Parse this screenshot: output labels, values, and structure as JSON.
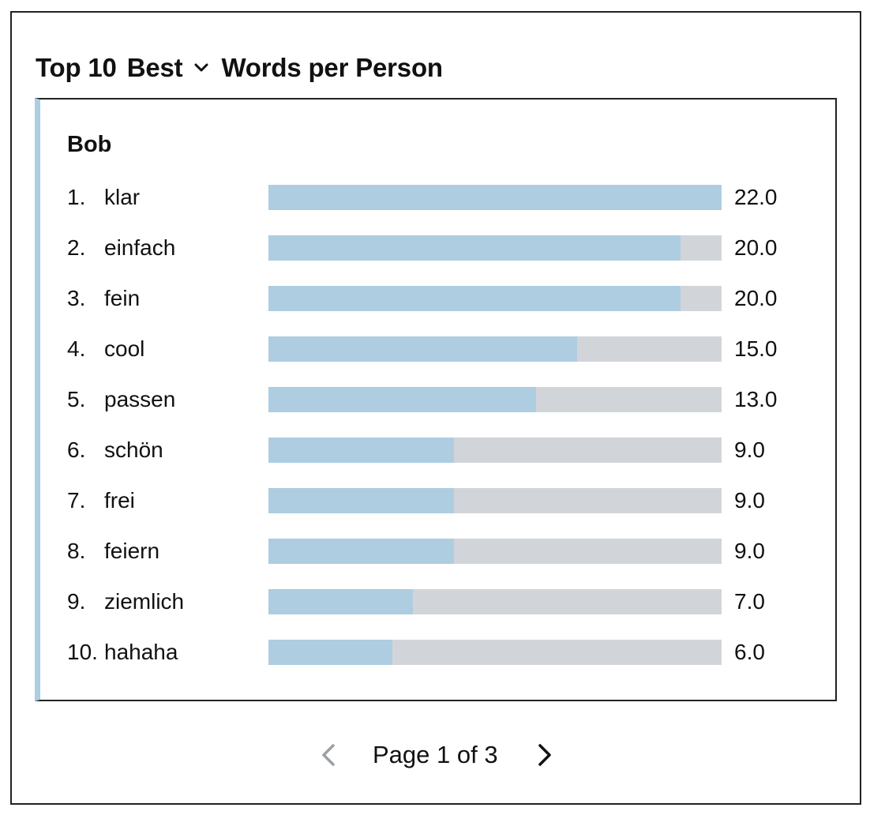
{
  "header": {
    "title_prefix": "Top 10",
    "metric_dropdown": "Best",
    "title_suffix": "Words per Person"
  },
  "chart_data": {
    "type": "bar",
    "orientation": "horizontal",
    "person": "Bob",
    "categories": [
      "klar",
      "einfach",
      "fein",
      "cool",
      "passen",
      "schön",
      "frei",
      "feiern",
      "ziemlich",
      "hahaha"
    ],
    "ranks": [
      "1.",
      "2.",
      "3.",
      "4.",
      "5.",
      "6.",
      "7.",
      "8.",
      "9.",
      "10."
    ],
    "values": [
      22.0,
      20.0,
      20.0,
      15.0,
      13.0,
      9.0,
      9.0,
      9.0,
      7.0,
      6.0
    ],
    "value_labels": [
      "22.0",
      "20.0",
      "20.0",
      "15.0",
      "13.0",
      "9.0",
      "9.0",
      "9.0",
      "7.0",
      "6.0"
    ],
    "xlim": [
      0,
      22.0
    ],
    "bar_color": "#aecde1",
    "track_color": "#d1d5da"
  },
  "pagination": {
    "label": "Page 1 of 3",
    "prev_icon": "chevron-left-icon",
    "next_icon": "chevron-right-icon"
  },
  "colors": {
    "accent": "#a9cfe0"
  }
}
